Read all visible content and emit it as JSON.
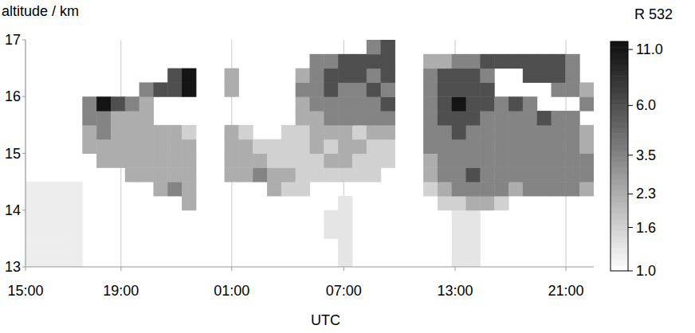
{
  "chart_data": {
    "type": "heatmap",
    "x_label": "UTC",
    "y_label": "altitude / km",
    "colorbar_label": "R 532",
    "xlim": [
      0,
      100
    ],
    "xticks": [
      {
        "value": 0,
        "label": "15:00"
      },
      {
        "value": 16.8,
        "label": "19:00"
      },
      {
        "value": 36.3,
        "label": "01:00"
      },
      {
        "value": 56.0,
        "label": "07:00"
      },
      {
        "value": 75.6,
        "label": "13:00"
      },
      {
        "value": 95.1,
        "label": "21:00"
      }
    ],
    "ylim": [
      13,
      17
    ],
    "yticks": [
      13,
      14,
      15,
      16,
      17
    ],
    "grid": true,
    "x_edges": [
      0,
      2.5,
      5,
      7.5,
      10,
      12.5,
      15,
      17.5,
      20,
      22.5,
      25,
      27.5,
      30,
      32.5,
      35,
      37.5,
      40,
      42.5,
      45,
      47.5,
      50,
      52.5,
      55,
      57.5,
      60,
      62.5,
      65,
      67.5,
      70,
      72.5,
      75,
      77.5,
      80,
      82.5,
      85,
      87.5,
      90,
      92.5,
      95,
      97.5,
      100
    ],
    "y_edges": [
      13,
      13.25,
      13.5,
      13.75,
      14,
      14.25,
      14.5,
      14.75,
      15,
      15.25,
      15.5,
      15.75,
      16,
      16.25,
      16.5,
      16.75,
      17
    ],
    "values": [
      [
        1.2,
        1.2,
        1.2,
        1.2,
        null,
        null,
        null,
        null,
        null,
        null,
        null,
        null,
        null,
        null,
        null,
        null,
        null,
        null,
        null,
        null,
        null,
        null,
        1.3,
        null,
        null,
        null,
        null,
        null,
        null,
        null,
        1.3,
        1.3,
        null,
        null,
        null,
        null,
        null,
        null,
        null,
        null
      ],
      [
        1.2,
        1.2,
        1.2,
        1.2,
        null,
        null,
        null,
        null,
        null,
        null,
        null,
        null,
        null,
        null,
        null,
        null,
        null,
        null,
        null,
        null,
        null,
        null,
        1.3,
        null,
        null,
        null,
        null,
        null,
        null,
        null,
        1.3,
        1.3,
        null,
        null,
        null,
        null,
        null,
        null,
        null,
        null
      ],
      [
        1.2,
        1.2,
        1.2,
        1.2,
        null,
        null,
        null,
        null,
        null,
        null,
        null,
        null,
        null,
        null,
        null,
        null,
        null,
        null,
        null,
        null,
        null,
        1.3,
        1.3,
        null,
        null,
        null,
        null,
        null,
        null,
        null,
        1.3,
        1.3,
        null,
        null,
        null,
        null,
        null,
        null,
        null,
        null
      ],
      [
        1.2,
        1.2,
        1.2,
        1.2,
        null,
        null,
        null,
        null,
        null,
        null,
        null,
        null,
        null,
        null,
        null,
        null,
        null,
        null,
        null,
        null,
        null,
        1.3,
        1.3,
        null,
        null,
        null,
        null,
        null,
        null,
        null,
        1.3,
        1.3,
        null,
        null,
        null,
        null,
        null,
        null,
        null,
        null
      ],
      [
        1.2,
        1.2,
        1.2,
        1.2,
        null,
        null,
        null,
        null,
        null,
        null,
        null,
        2.3,
        null,
        null,
        null,
        null,
        null,
        null,
        null,
        null,
        null,
        null,
        1.3,
        null,
        null,
        null,
        null,
        null,
        null,
        1.6,
        1.6,
        2.3,
        2.3,
        1.6,
        null,
        null,
        null,
        null,
        null,
        null
      ],
      [
        1.2,
        1.2,
        1.2,
        1.2,
        null,
        null,
        null,
        null,
        null,
        2.3,
        3.5,
        2.3,
        null,
        null,
        null,
        null,
        null,
        2.3,
        1.6,
        1.6,
        null,
        null,
        null,
        null,
        null,
        null,
        null,
        null,
        1.6,
        2.3,
        3.5,
        3.5,
        3.5,
        3.5,
        2.3,
        3.5,
        3.5,
        3.5,
        3.5,
        2.3
      ],
      [
        null,
        null,
        null,
        null,
        null,
        null,
        null,
        2.3,
        2.3,
        2.3,
        2.3,
        2.3,
        null,
        null,
        2.3,
        2.3,
        3.5,
        2.3,
        2.3,
        1.6,
        1.6,
        1.6,
        1.6,
        1.6,
        1.6,
        null,
        null,
        null,
        2.3,
        3.5,
        3.5,
        6,
        3.5,
        3.5,
        3.5,
        3.5,
        3.5,
        3.5,
        3.5,
        3.5
      ],
      [
        null,
        null,
        null,
        null,
        null,
        2.3,
        2.3,
        2.3,
        2.3,
        2.3,
        2.3,
        2.3,
        null,
        null,
        2.3,
        2.3,
        2.3,
        1.6,
        1.6,
        1.6,
        1.6,
        2.3,
        2.3,
        1.6,
        1.6,
        1.6,
        null,
        null,
        2.3,
        3.5,
        3.5,
        3.5,
        3.5,
        3.5,
        3.5,
        3.5,
        3.5,
        3.5,
        3.5,
        3.5
      ],
      [
        null,
        null,
        null,
        null,
        2.3,
        2.3,
        2.3,
        2.3,
        2.3,
        2.3,
        2.3,
        2.3,
        null,
        null,
        2.3,
        2.3,
        1.6,
        1.6,
        1.6,
        1.6,
        2.3,
        1.6,
        2.3,
        2.3,
        1.6,
        1.6,
        null,
        null,
        3.5,
        3.5,
        3.5,
        3.5,
        3.5,
        3.5,
        3.5,
        3.5,
        3.5,
        3.5,
        3.5,
        2.3
      ],
      [
        null,
        null,
        null,
        null,
        2.3,
        3.5,
        2.3,
        2.3,
        2.3,
        2.3,
        2.3,
        1.6,
        null,
        null,
        2.3,
        1.6,
        null,
        null,
        1.6,
        1.6,
        2.3,
        2.3,
        2.3,
        1.6,
        2.3,
        2.3,
        null,
        null,
        3.5,
        3.5,
        6,
        3.5,
        3.5,
        3.5,
        3.5,
        3.5,
        3.5,
        3.5,
        3.5,
        2.3
      ],
      [
        null,
        null,
        null,
        null,
        3.5,
        3.5,
        2.3,
        2.3,
        2.3,
        null,
        null,
        null,
        null,
        null,
        null,
        null,
        null,
        null,
        null,
        2.3,
        2.3,
        3.5,
        3.5,
        3.5,
        3.5,
        3.5,
        null,
        null,
        3.5,
        6,
        6,
        6,
        3.5,
        3.5,
        3.5,
        3.5,
        6,
        3.5,
        3.5,
        null
      ],
      [
        null,
        null,
        null,
        null,
        3.5,
        11,
        6,
        3.5,
        2.3,
        null,
        null,
        null,
        null,
        null,
        null,
        null,
        null,
        null,
        null,
        2.3,
        3.5,
        3.5,
        3.5,
        3.5,
        3.5,
        6,
        null,
        null,
        3.5,
        6,
        11,
        6,
        6,
        3.5,
        6,
        3.5,
        null,
        null,
        null,
        3.5
      ],
      [
        null,
        null,
        null,
        null,
        null,
        null,
        null,
        null,
        3.5,
        6,
        6,
        11,
        null,
        null,
        2.3,
        null,
        null,
        null,
        null,
        3.5,
        3.5,
        6,
        3.5,
        3.5,
        6,
        3.5,
        null,
        null,
        3.5,
        6,
        6,
        6,
        6,
        null,
        null,
        null,
        null,
        3.5,
        3.5,
        2.3
      ],
      [
        null,
        null,
        null,
        null,
        null,
        null,
        null,
        null,
        null,
        null,
        6,
        11,
        null,
        null,
        2.3,
        null,
        null,
        null,
        null,
        2.3,
        3.5,
        6,
        6,
        6,
        3.5,
        6,
        null,
        null,
        3.5,
        6,
        6,
        6,
        3.5,
        null,
        null,
        6,
        6,
        6,
        3.5,
        null
      ],
      [
        null,
        null,
        null,
        null,
        null,
        null,
        null,
        null,
        null,
        null,
        null,
        null,
        null,
        null,
        null,
        null,
        null,
        null,
        null,
        null,
        3.5,
        3.5,
        6,
        6,
        6,
        6,
        null,
        null,
        2.3,
        2.3,
        3.5,
        3.5,
        6,
        6,
        6,
        6,
        6,
        6,
        3.5,
        null
      ],
      [
        null,
        null,
        null,
        null,
        null,
        null,
        null,
        null,
        null,
        null,
        null,
        null,
        null,
        null,
        null,
        null,
        null,
        null,
        null,
        null,
        null,
        null,
        null,
        null,
        3.5,
        6,
        null,
        null,
        null,
        null,
        null,
        null,
        null,
        null,
        null,
        null,
        null,
        null,
        null,
        null
      ]
    ],
    "color_range": [
      1,
      12
    ],
    "color_ticks": [
      {
        "value": 1,
        "label": "1.0"
      },
      1.6,
      2.3,
      3.5,
      {
        "value": 6,
        "label": "6.0"
      },
      {
        "value": 11,
        "label": "11.0"
      }
    ]
  }
}
